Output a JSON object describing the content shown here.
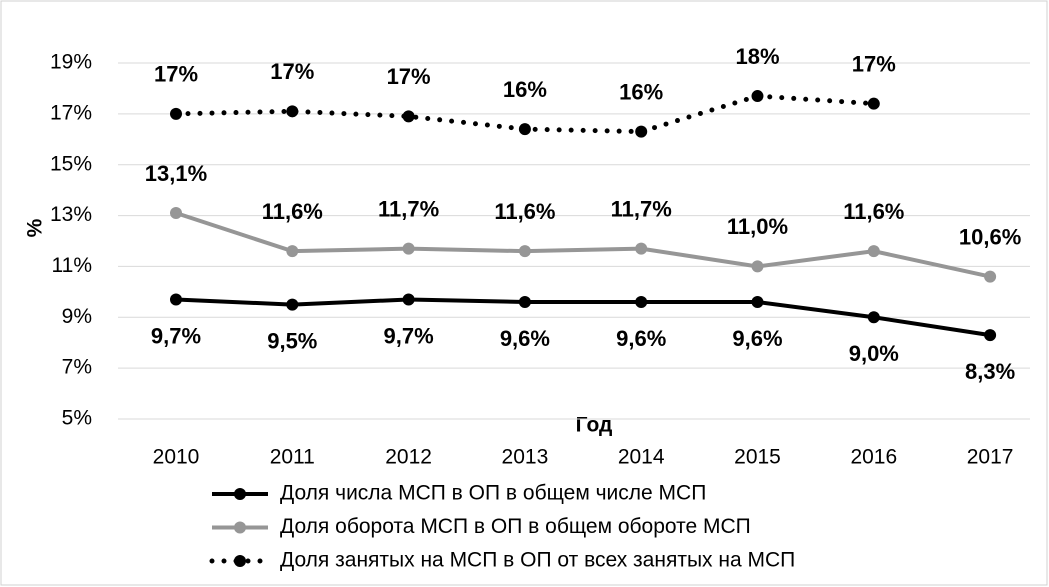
{
  "chart_data": {
    "type": "line",
    "x_label": "Год",
    "y_label": "%",
    "categories": [
      "2010",
      "2011",
      "2012",
      "2013",
      "2014",
      "2015",
      "2016",
      "2017"
    ],
    "ylim": [
      5,
      19
    ],
    "yticks": [
      {
        "value": 5,
        "label": "5%"
      },
      {
        "value": 7,
        "label": "7%"
      },
      {
        "value": 9,
        "label": "9%"
      },
      {
        "value": 11,
        "label": "11%"
      },
      {
        "value": 13,
        "label": "13%"
      },
      {
        "value": 15,
        "label": "15%"
      },
      {
        "value": 17,
        "label": "17%"
      },
      {
        "value": 19,
        "label": "19%"
      }
    ],
    "grid": true,
    "series": [
      {
        "name": "Доля числа МСП в ОП в общем числе МСП",
        "color": "#000000",
        "style": "solid",
        "values": [
          9.7,
          9.5,
          9.7,
          9.6,
          9.6,
          9.6,
          9.0,
          8.3
        ],
        "value_labels": [
          "9,7%",
          "9,5%",
          "9,7%",
          "9,6%",
          "9,6%",
          "9,6%",
          "9,0%",
          "8,3%"
        ]
      },
      {
        "name": "Доля оборота МСП в ОП в общем обороте МСП",
        "color": "#969696",
        "style": "solid",
        "values": [
          13.1,
          11.6,
          11.7,
          11.6,
          11.7,
          11.0,
          11.6,
          10.6
        ],
        "value_labels": [
          "13,1%",
          "11,6%",
          "11,7%",
          "11,6%",
          "11,7%",
          "11,0%",
          "11,6%",
          "10,6%"
        ]
      },
      {
        "name": "Доля занятых на МСП в ОП от всех занятых на МСП",
        "color": "#000000",
        "style": "dotted",
        "values": [
          17.0,
          17.1,
          16.9,
          16.4,
          16.3,
          17.7,
          17.4,
          null
        ],
        "value_labels": [
          "17%",
          "17%",
          "17%",
          "16%",
          "16%",
          "18%",
          "17%",
          null
        ]
      }
    ]
  }
}
